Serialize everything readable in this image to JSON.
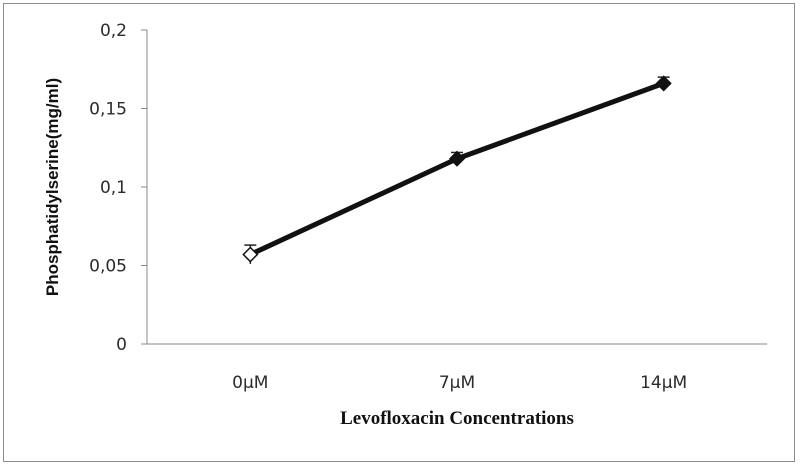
{
  "chart_data": {
    "type": "line",
    "title": "",
    "xlabel": "Levofloxacin Concentrations",
    "ylabel": "Phosphatidylserine(mg/ml)",
    "categories": [
      "0µM",
      "7µM",
      "14µM"
    ],
    "ylim": [
      0,
      0.2
    ],
    "yticks": [
      0,
      0.05,
      0.1,
      0.15,
      0.2
    ],
    "ytick_labels": [
      "0",
      "0,05",
      "0,1",
      "0,15",
      "0,2"
    ],
    "grid": false,
    "legend": "none",
    "series": [
      {
        "values": [
          0.057,
          0.118,
          0.166
        ],
        "errors": [
          0.006,
          0.004,
          0.004
        ],
        "marker": "diamond",
        "hollow_markers": [
          true,
          false,
          false
        ],
        "color": "#111111"
      }
    ]
  }
}
